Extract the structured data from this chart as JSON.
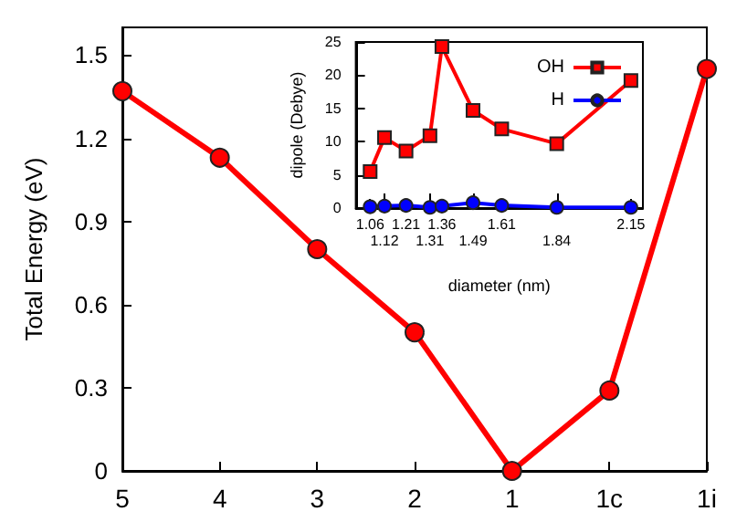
{
  "chart_data": [
    {
      "type": "line",
      "ylabel": "Total Energy (eV)",
      "categories": [
        "5",
        "4",
        "3",
        "2",
        "1",
        "1c",
        "1i"
      ],
      "values": [
        1.37,
        1.13,
        0.8,
        0.5,
        0.0,
        0.29,
        1.45
      ],
      "color": "#ff0000",
      "marker": "circle",
      "ylim": [
        0,
        1.6
      ],
      "yticks": [
        0,
        0.3,
        0.6,
        0.9,
        1.2,
        1.5
      ],
      "grid": false,
      "legend": false
    },
    {
      "type": "line",
      "xlabel": "diameter (nm)",
      "ylabel": "dipole (Debye)",
      "x": [
        1.06,
        1.12,
        1.21,
        1.31,
        1.36,
        1.49,
        1.61,
        1.84,
        2.15
      ],
      "series": [
        {
          "name": "OH",
          "color": "#ff0000",
          "marker": "square",
          "values": [
            5.5,
            10.6,
            8.6,
            10.9,
            24.3,
            14.7,
            11.9,
            9.7,
            19.2
          ]
        },
        {
          "name": "H",
          "color": "#0000ff",
          "marker": "circle",
          "values": [
            0.2,
            0.3,
            0.4,
            0.1,
            0.3,
            0.8,
            0.4,
            0.1,
            0.1
          ]
        }
      ],
      "xlim": [
        1.0,
        2.2
      ],
      "xticks": [
        1.06,
        1.21,
        1.36,
        1.61,
        2.15
      ],
      "x2lim": [
        1.0,
        2.2
      ],
      "x2ticks": [
        1.12,
        1.31,
        1.49,
        1.84
      ],
      "ylim": [
        0,
        25
      ],
      "yticks": [
        0,
        5,
        10,
        15,
        20,
        25
      ],
      "grid": false,
      "legend": "top right"
    }
  ]
}
